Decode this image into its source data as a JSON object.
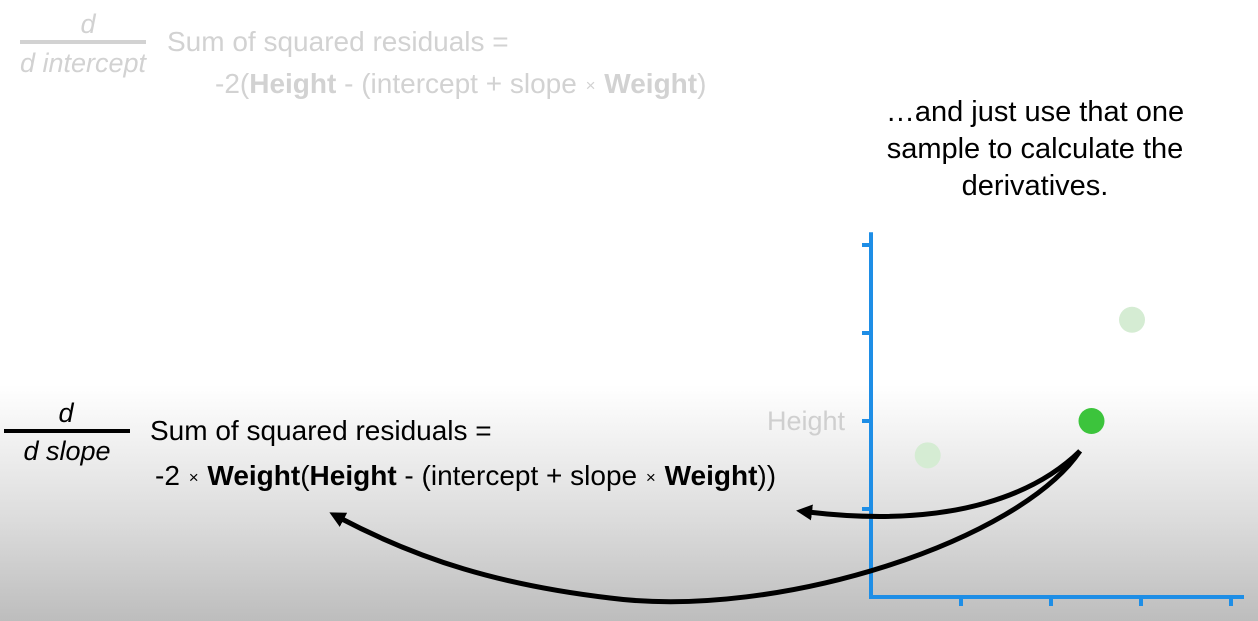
{
  "intercept_derivative": {
    "frac_num": "d",
    "frac_den": "d intercept",
    "line1": "Sum of squared residuals =",
    "line2": {
      "p1": "-2(",
      "height": "Height",
      "p2": " - (intercept + slope ",
      "times": "×",
      "p3": " ",
      "weight": "Weight",
      "p4": ")"
    }
  },
  "slope_derivative": {
    "frac_num": "d",
    "frac_den": "d slope",
    "line1": "Sum of squared residuals =",
    "line2": {
      "p1": "-2 ",
      "times1": "×",
      "p2": " ",
      "weight1": "Weight",
      "p3": "(",
      "height": "Height",
      "p4": " - (intercept + slope ",
      "times2": "×",
      "p5": " ",
      "weight2": "Weight",
      "p6": "))"
    }
  },
  "caption": {
    "line1": "…and just use that one",
    "line2": "sample to calculate the",
    "line3": "derivatives."
  },
  "chart_data": {
    "type": "scatter",
    "ylabel": "Height",
    "xlabel": "",
    "xlim": [
      0,
      4.1
    ],
    "ylim": [
      0,
      4.1
    ],
    "x_ticks": [
      1,
      2,
      3,
      4
    ],
    "y_ticks": [
      1,
      2,
      3,
      4
    ],
    "points": [
      {
        "x": 0.63,
        "y": 1.61,
        "state": "faded"
      },
      {
        "x": 2.45,
        "y": 2.0,
        "state": "selected"
      },
      {
        "x": 2.9,
        "y": 3.15,
        "state": "faded"
      }
    ],
    "colors": {
      "axis": "#1e8ee6",
      "selected": "#3cc43c",
      "faded": "#d5ecd3",
      "axis_label": "#cfcfcf"
    }
  },
  "colors": {
    "faded_text": "#d2d2d2",
    "arrow": "#000000"
  }
}
